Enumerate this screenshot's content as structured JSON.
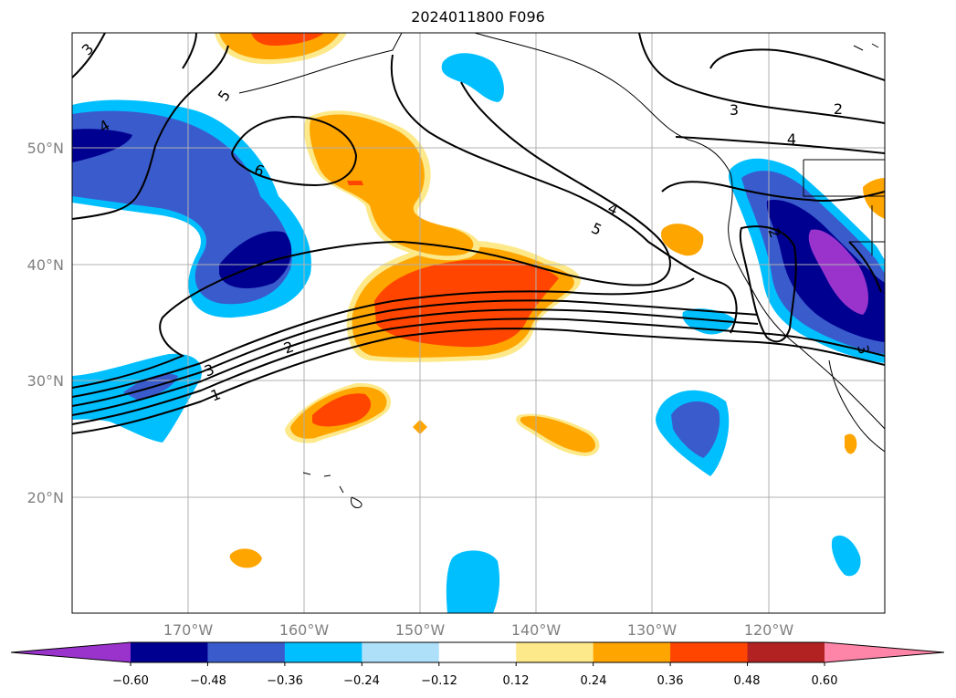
{
  "title": "2024011800 F096",
  "map": {
    "latitude_labels": [
      "50°N",
      "40°N",
      "30°N",
      "20°N"
    ],
    "longitude_labels": [
      "170°W",
      "160°W",
      "150°W",
      "140°W",
      "130°W",
      "120°W"
    ],
    "contour_labels": [
      "3",
      "5",
      "4",
      "6",
      "3",
      "1",
      "2",
      "4",
      "5",
      "3",
      "2",
      "4",
      "2",
      "3"
    ]
  },
  "colorbar": {
    "ticks": [
      "−0.60",
      "−0.48",
      "−0.36",
      "−0.24",
      "−0.12",
      "0.12",
      "0.24",
      "0.36",
      "0.48",
      "0.60"
    ],
    "colors": [
      "#9933cc",
      "#000090",
      "#3a5bcc",
      "#00bfff",
      "#aee0fa",
      "#ffffff",
      "#fde98a",
      "#ffa500",
      "#ff4500",
      "#b22222",
      "#ff85a8"
    ]
  }
}
